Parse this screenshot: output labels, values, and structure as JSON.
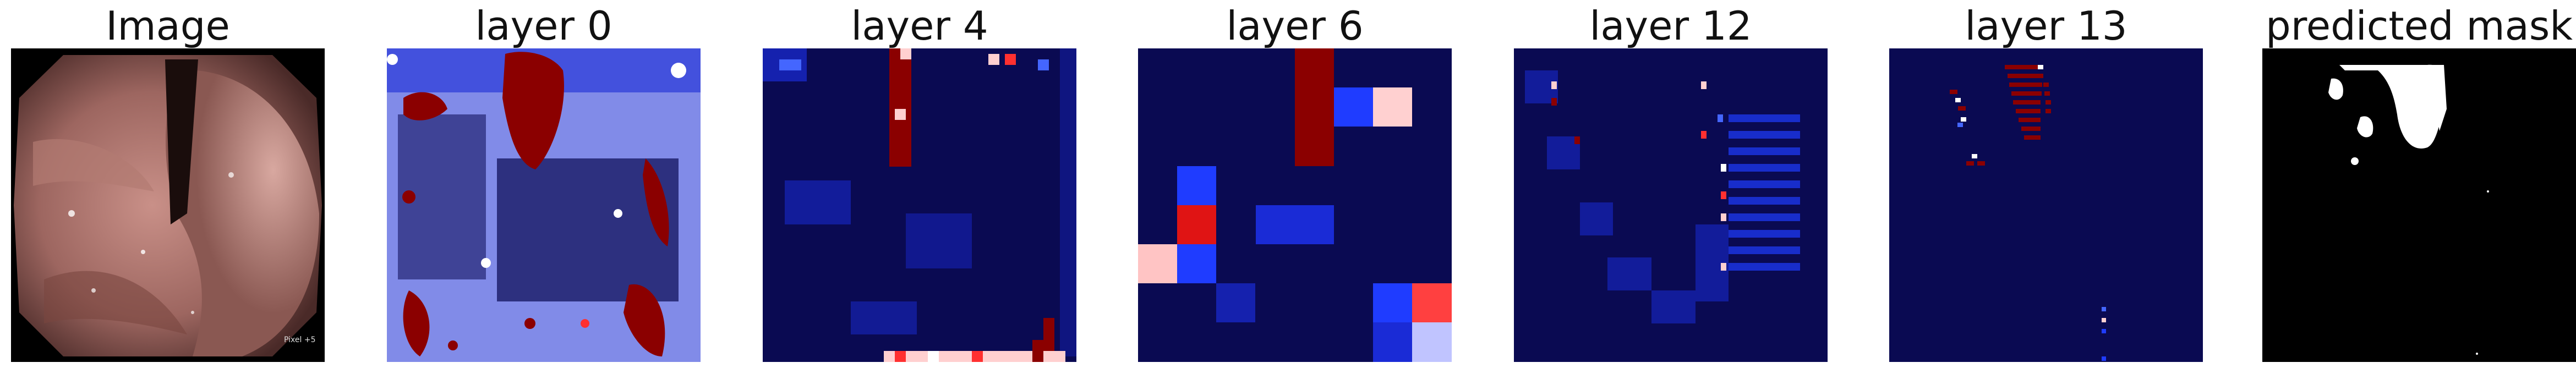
{
  "panels": [
    {
      "title": "Image"
    },
    {
      "title": "layer 0"
    },
    {
      "title": "layer 4"
    },
    {
      "title": "layer 6"
    },
    {
      "title": "layer 12"
    },
    {
      "title": "layer 13"
    },
    {
      "title": "predicted mask"
    }
  ],
  "image_watermark": "Pixel +5",
  "colors": {
    "background": "#ffffff",
    "heatmap_low": "#0a0a52",
    "heatmap_mid": "#1a2bd6",
    "heatmap_high": "#8b0000",
    "heatmap_peak": "#ffd0d0",
    "mask_foreground": "#ffffff",
    "mask_background": "#000000"
  }
}
